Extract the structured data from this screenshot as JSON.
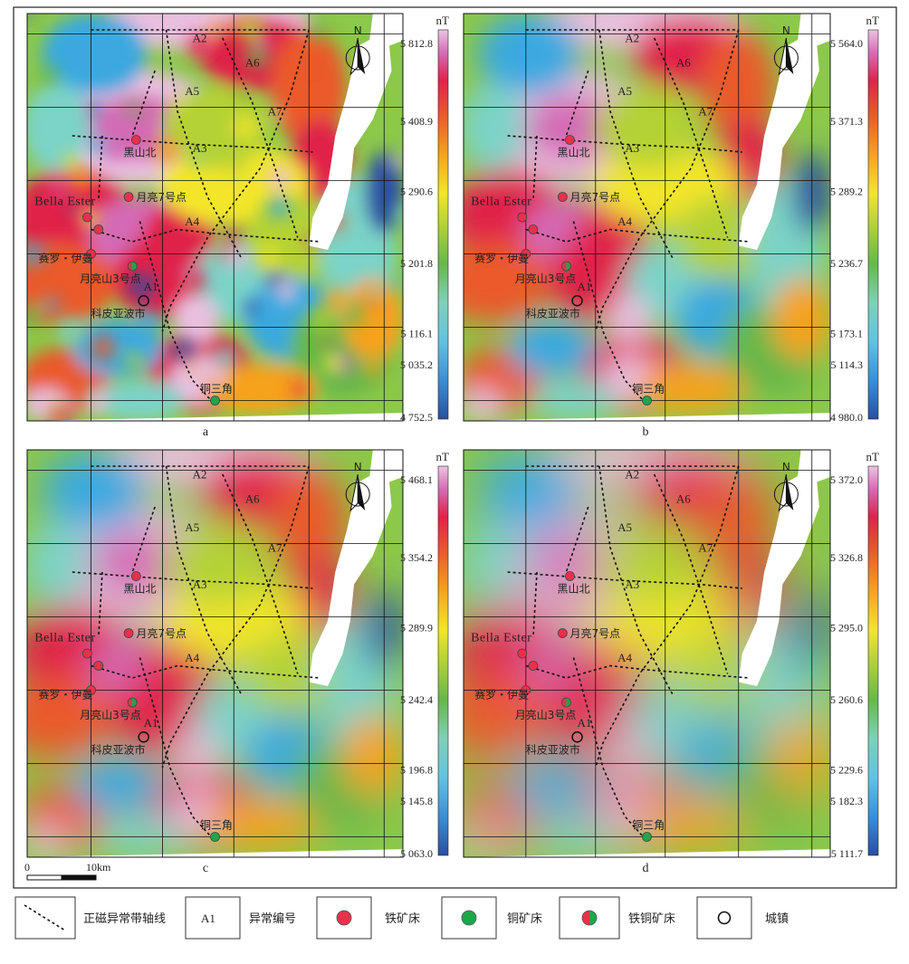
{
  "panels": [
    {
      "id": "a",
      "caption": "a",
      "unit": "nT",
      "ticks": [
        "5 812.8",
        "5 408.9",
        "5 290.6",
        "5 201.8",
        "5 116.1",
        "5 035.2",
        "4 752.5"
      ],
      "labels": {
        "A1": "A1",
        "A2": "A2",
        "A3": "A3",
        "A4": "A4",
        "A5": "A5",
        "A6": "A6",
        "A7": "A7",
        "heishanbei": "黑山北",
        "yueliang7": "月亮7号点",
        "bella": "Bella Ester",
        "sailuo": "赛罗・伊曼",
        "yueliangshan3": "月亮山3号点",
        "kepiyabo": "科皮亚波市",
        "tongsanjiao": "铜三角"
      }
    },
    {
      "id": "b",
      "caption": "b",
      "unit": "nT",
      "ticks": [
        "5 564.0",
        "5 371.3",
        "5 289.2",
        "5 236.7",
        "5 173.1",
        "5 114.3",
        "4 980.0"
      ],
      "labels": {
        "A1": "A1",
        "A2": "A2",
        "A3": "A3",
        "A4": "A4",
        "A5": "A5",
        "A6": "A6",
        "A7": "A7",
        "heishanbei": "黑山北",
        "yueliang7": "月亮7号点",
        "bella": "Bella Ester",
        "sailuo": "赛罗・伊曼",
        "yueliangshan3": "月亮山3号点",
        "kepiyabo": "科皮亚波市",
        "tongsanjiao": "铜三角"
      }
    },
    {
      "id": "c",
      "caption": "c",
      "unit": "nT",
      "ticks": [
        "5 468.1",
        "5 354.2",
        "5 289.9",
        "5 242.4",
        "5 196.8",
        "5 145.8",
        "5 063.0"
      ],
      "labels": {
        "A1": "A1",
        "A2": "A2",
        "A3": "A3",
        "A4": "A4",
        "A5": "A5",
        "A6": "A6",
        "A7": "A7",
        "heishanbei": "黑山北",
        "yueliang7": "月亮7号点",
        "bella": "Bella Ester",
        "sailuo": "赛罗・伊曼",
        "yueliangshan3": "月亮山3号点",
        "kepiyabo": "科皮亚波市",
        "tongsanjiao": "铜三角"
      }
    },
    {
      "id": "d",
      "caption": "d",
      "unit": "nT",
      "ticks": [
        "5 372.0",
        "5 326.8",
        "5 295.0",
        "5 260.6",
        "5 229.6",
        "5 182.3",
        "5 111.7"
      ],
      "labels": {
        "A1": "A1",
        "A2": "A2",
        "A3": "A3",
        "A4": "A4",
        "A5": "A5",
        "A6": "A6",
        "A7": "A7",
        "heishanbei": "黑山北",
        "yueliang7": "月亮7号点",
        "bella": "Bella Ester",
        "sailuo": "赛罗・伊曼",
        "yueliangshan3": "月亮山3号点",
        "kepiyabo": "科皮亚波市",
        "tongsanjiao": "铜三角"
      }
    }
  ],
  "north_label": "N",
  "scalebar": {
    "start": "0",
    "end": "10km"
  },
  "legend": {
    "axis_line": "正磁异常带轴线",
    "anomaly_code_sample": "A1",
    "anomaly_code": "异常编号",
    "iron": "铁矿床",
    "copper": "铜矿床",
    "iron_copper": "铁铜矿床",
    "town": "城镇"
  },
  "colors": {
    "iron": "#e8324a",
    "copper": "#1aa84a",
    "ramp": [
      "#2a4fa0",
      "#3aa9df",
      "#7cd3c7",
      "#66b84a",
      "#b4d236",
      "#f3e62a",
      "#f6a21c",
      "#ea5a2b",
      "#e0224a",
      "#d46ab5",
      "#e9bfe0"
    ]
  }
}
